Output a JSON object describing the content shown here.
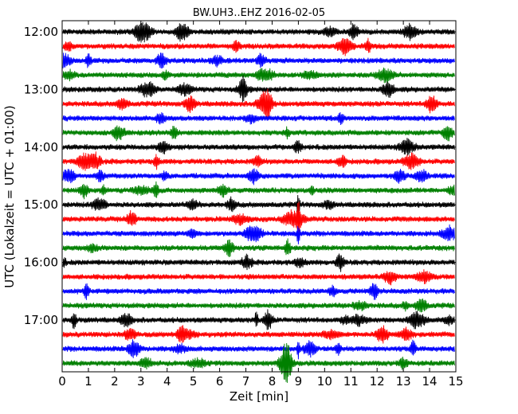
{
  "chart_data": {
    "type": "line",
    "title": "BW.UH3..EHZ 2016-02-05",
    "xlabel": "Zeit  [min]",
    "ylabel": "UTC (Lokalzeit = UTC + 01:00)",
    "xlim": [
      0,
      15
    ],
    "x_ticks": [
      "0",
      "1",
      "2",
      "3",
      "4",
      "5",
      "6",
      "7",
      "8",
      "9",
      "10",
      "11",
      "12",
      "13",
      "14",
      "15"
    ],
    "y_ticks": [
      "12:00",
      "13:00",
      "14:00",
      "15:00",
      "16:00",
      "17:00"
    ],
    "trace_colors": [
      "#000000",
      "#ff0000",
      "#0000ff",
      "#008000"
    ],
    "trace_start_times": [
      "12:00",
      "12:15",
      "12:30",
      "12:45",
      "13:00",
      "13:15",
      "13:30",
      "13:45",
      "14:00",
      "14:15",
      "14:30",
      "14:45",
      "15:00",
      "15:15",
      "15:30",
      "15:45",
      "16:00",
      "16:15",
      "16:30",
      "16:45",
      "17:00",
      "17:15",
      "17:30",
      "17:45"
    ],
    "trace_minutes_per_line": 15,
    "vertical_spikes": [
      {
        "trace": "15:00",
        "minute": 9.0
      },
      {
        "trace": "15:15",
        "minute": 9.0
      },
      {
        "trace": "15:30",
        "minute": 9.0
      },
      {
        "trace": "17:30",
        "minute": 9.0
      },
      {
        "trace": "17:00",
        "minute": 7.4
      }
    ],
    "grid": false,
    "legend": "none"
  }
}
